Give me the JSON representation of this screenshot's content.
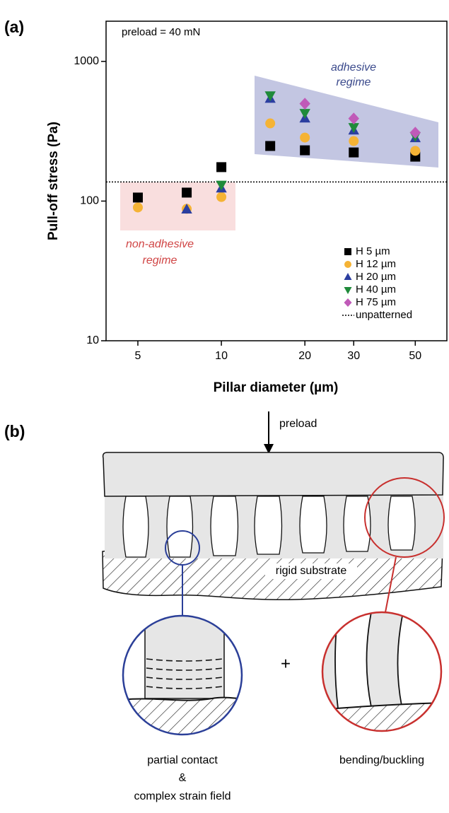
{
  "chart_data": {
    "type": "scatter",
    "panel_label": "(a)",
    "x_label": "Pillar diameter (µm)",
    "y_label": "Pull-off stress (Pa)",
    "x_scale": "log",
    "y_scale": "log",
    "xlim": [
      3.84,
      65
    ],
    "ylim": [
      10,
      1940
    ],
    "xticks": [
      5,
      10,
      20,
      30,
      50
    ],
    "yticks": [
      10,
      100,
      1000
    ],
    "x": [
      5,
      7.5,
      10,
      15,
      20,
      30,
      50
    ],
    "series": [
      {
        "name": "H 5 µm",
        "color": "#000000",
        "marker": "square",
        "values": [
          106,
          115,
          175,
          248,
          231,
          223,
          208
        ]
      },
      {
        "name": "H 12 µm",
        "color": "#f5b335",
        "marker": "circle",
        "values": [
          90,
          88,
          107,
          360,
          285,
          269,
          229
        ]
      },
      {
        "name": "H 20 µm",
        "color": "#2b3ea0",
        "marker": "triangle-up",
        "values": [
          null,
          87,
          123,
          540,
          390,
          320,
          282
        ]
      },
      {
        "name": "H 40 µm",
        "color": "#1f8a3a",
        "marker": "triangle-down",
        "values": [
          null,
          null,
          131,
          572,
          428,
          339,
          292
        ]
      },
      {
        "name": "H 75 µm",
        "color": "#c05ab8",
        "marker": "diamond",
        "values": [
          null,
          null,
          null,
          null,
          498,
          390,
          309
        ]
      }
    ],
    "reference_line": {
      "name": "unpatterned",
      "value": 137
    },
    "annotations": [
      {
        "text": "preload = 40 mN"
      },
      {
        "text": "adhesive"
      },
      {
        "text": "regime"
      },
      {
        "text": "non-adhesive"
      },
      {
        "text": "regime"
      }
    ],
    "legend": "lower right"
  },
  "diagram": {
    "panel_label": "(b)",
    "force": "preload",
    "substrate": "rigid substrate",
    "plus": "+",
    "left_caption": [
      "partial contact",
      "&",
      "complex strain field"
    ],
    "right_caption": "bending/buckling"
  }
}
